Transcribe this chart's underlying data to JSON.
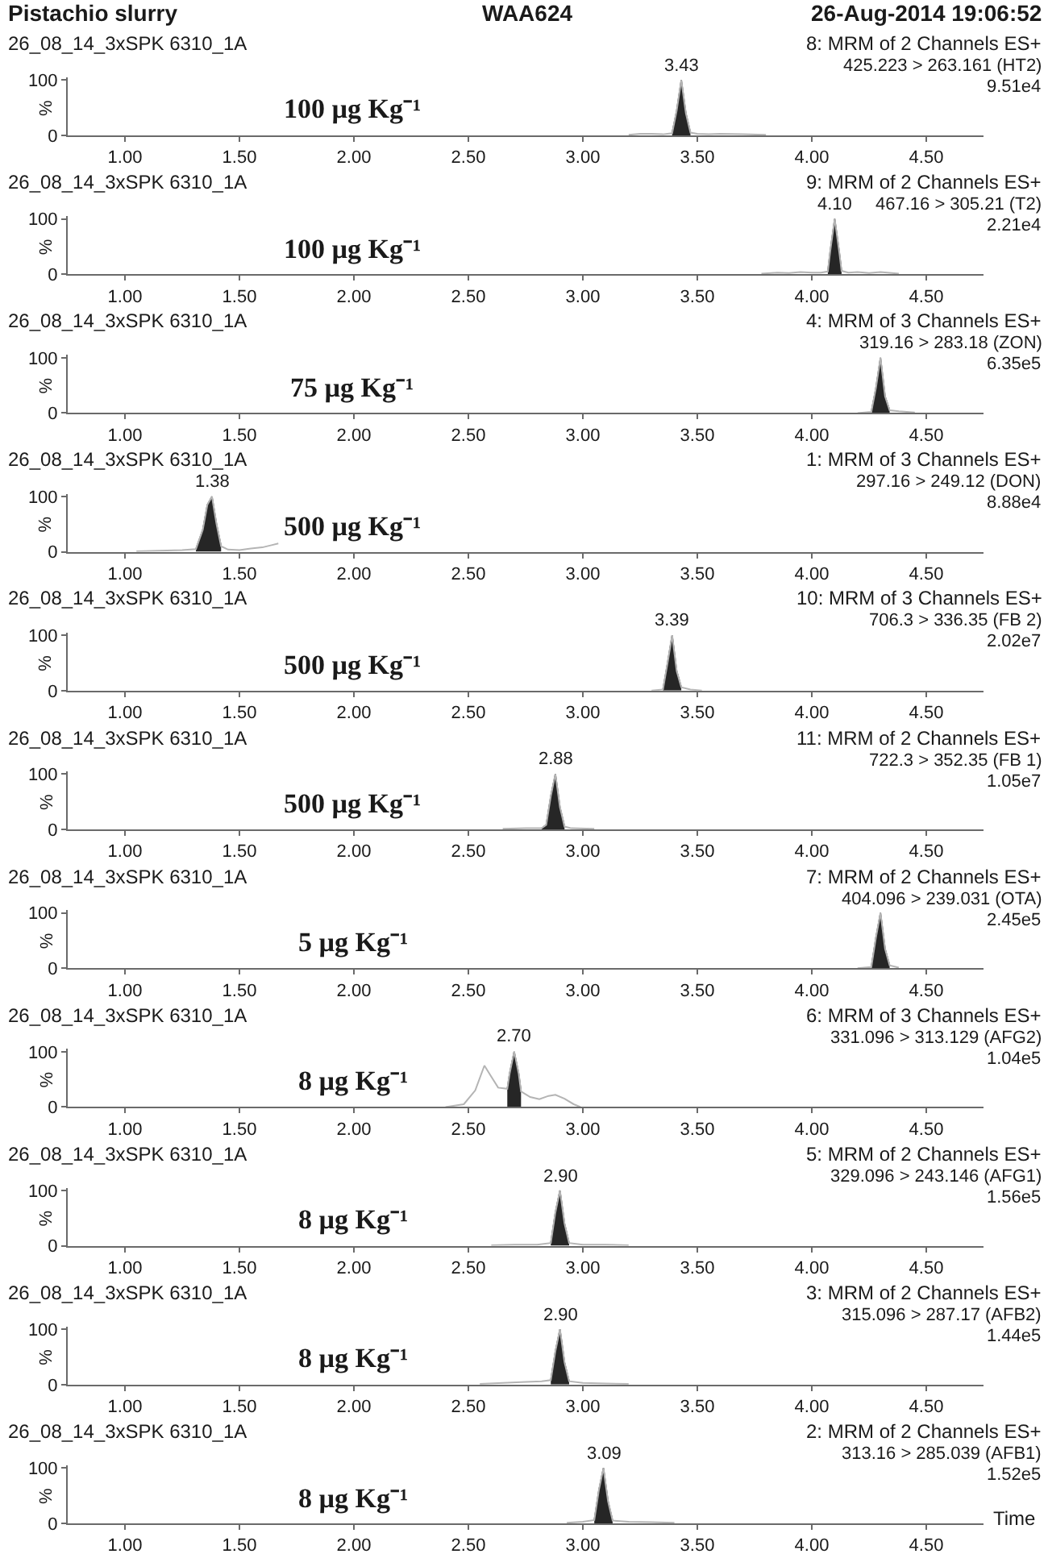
{
  "chart_data": [
    {
      "type": "other",
      "title": "Pistachio slurry",
      "subtitle": "WAA624",
      "annotations": [
        "26-Aug-2014 19:06:52"
      ]
    },
    {
      "type": "line",
      "title": "26_08_14_3xSPK 6310_1A",
      "subtitle": "8: MRM of 2 Channels ES+",
      "ylabel": "%",
      "annotations": [
        "425.223 > 263.161 (HT2)",
        "9.51e4",
        "100 µg Kg⁻¹",
        {
          "text": "3.43",
          "x": 3.43,
          "y": 100
        }
      ],
      "xlim": [
        0.75,
        4.75
      ],
      "xticks": [
        {
          "value": 1,
          "label": "1.00"
        },
        {
          "value": 1.5,
          "label": "1.50"
        },
        {
          "value": 2,
          "label": "2.00"
        },
        {
          "value": 2.5,
          "label": "2.50"
        },
        {
          "value": 3,
          "label": "3.00"
        },
        {
          "value": 3.5,
          "label": "3.50"
        },
        {
          "value": 4,
          "label": "4.00"
        },
        {
          "value": 4.5,
          "label": "4.50"
        }
      ],
      "ylim": [
        0,
        105
      ],
      "yticks": [
        0,
        100
      ],
      "series": [
        {
          "type": "area",
          "color": "#262626",
          "x": [
            3.39,
            3.41,
            3.43,
            3.45,
            3.47
          ],
          "values": [
            4,
            45,
            100,
            40,
            5
          ]
        },
        {
          "type": "line",
          "color": "#b4b4b4",
          "x": [
            3.2,
            3.25,
            3.3,
            3.35,
            3.39,
            3.41,
            3.43,
            3.45,
            3.47,
            3.5,
            3.55,
            3.6,
            3.7,
            3.8
          ],
          "values": [
            1,
            3,
            3,
            2,
            4,
            45,
            100,
            40,
            5,
            3,
            2,
            3,
            2,
            1
          ]
        }
      ]
    },
    {
      "type": "line",
      "title": "26_08_14_3xSPK 6310_1A",
      "subtitle": "9: MRM of 2 Channels ES+",
      "ylabel": "%",
      "annotations": [
        "467.16 > 305.21 (T2)",
        "2.21e4",
        "100 µg Kg⁻¹",
        {
          "text": "4.10",
          "x": 4.1,
          "y": 100
        }
      ],
      "xlim": [
        0.75,
        4.75
      ],
      "xticks": [
        {
          "value": 1,
          "label": "1.00"
        },
        {
          "value": 1.5,
          "label": "1.50"
        },
        {
          "value": 2,
          "label": "2.00"
        },
        {
          "value": 2.5,
          "label": "2.50"
        },
        {
          "value": 3,
          "label": "3.00"
        },
        {
          "value": 3.5,
          "label": "3.50"
        },
        {
          "value": 4,
          "label": "4.00"
        },
        {
          "value": 4.5,
          "label": "4.50"
        }
      ],
      "ylim": [
        0,
        105
      ],
      "yticks": [
        0,
        100
      ],
      "series": [
        {
          "type": "area",
          "color": "#262626",
          "x": [
            4.07,
            4.08,
            4.1,
            4.12,
            4.13
          ],
          "values": [
            5,
            40,
            100,
            40,
            6
          ]
        },
        {
          "type": "line",
          "color": "#b4b4b4",
          "x": [
            3.78,
            3.85,
            3.9,
            3.95,
            4.0,
            4.04,
            4.07,
            4.08,
            4.1,
            4.12,
            4.13,
            4.16,
            4.2,
            4.25,
            4.3,
            4.38
          ],
          "values": [
            1,
            3,
            2,
            4,
            3,
            3,
            5,
            40,
            100,
            40,
            6,
            3,
            4,
            2,
            4,
            1
          ]
        }
      ]
    },
    {
      "type": "line",
      "title": "26_08_14_3xSPK 6310_1A",
      "subtitle": "4: MRM of 3 Channels ES+",
      "ylabel": "%",
      "annotations": [
        "319.16 > 283.18 (ZON)",
        "6.35e5",
        "75 µg Kg⁻¹"
      ],
      "xlim": [
        0.75,
        4.75
      ],
      "xticks": [
        {
          "value": 1,
          "label": "1.00"
        },
        {
          "value": 1.5,
          "label": "1.50"
        },
        {
          "value": 2,
          "label": "2.00"
        },
        {
          "value": 2.5,
          "label": "2.50"
        },
        {
          "value": 3,
          "label": "3.00"
        },
        {
          "value": 3.5,
          "label": "3.50"
        },
        {
          "value": 4,
          "label": "4.00"
        },
        {
          "value": 4.5,
          "label": "4.50"
        }
      ],
      "ylim": [
        0,
        105
      ],
      "yticks": [
        0,
        100
      ],
      "series": [
        {
          "type": "area",
          "color": "#262626",
          "x": [
            4.26,
            4.28,
            4.3,
            4.32,
            4.34
          ],
          "values": [
            2,
            45,
            100,
            30,
            5
          ]
        },
        {
          "type": "line",
          "color": "#b4b4b4",
          "x": [
            4.2,
            4.26,
            4.28,
            4.3,
            4.32,
            4.34,
            4.38,
            4.45
          ],
          "values": [
            0,
            2,
            45,
            100,
            30,
            5,
            3,
            1
          ]
        }
      ]
    },
    {
      "type": "line",
      "title": "26_08_14_3xSPK 6310_1A",
      "subtitle": "1: MRM of 3 Channels ES+",
      "ylabel": "%",
      "annotations": [
        "297.16 > 249.12 (DON)",
        "8.88e4",
        "500 µg Kg⁻¹",
        {
          "text": "1.38",
          "x": 1.38,
          "y": 100
        }
      ],
      "xlim": [
        0.75,
        4.75
      ],
      "xticks": [
        {
          "value": 1,
          "label": "1.00"
        },
        {
          "value": 1.5,
          "label": "1.50"
        },
        {
          "value": 2,
          "label": "2.00"
        },
        {
          "value": 2.5,
          "label": "2.50"
        },
        {
          "value": 3,
          "label": "3.00"
        },
        {
          "value": 3.5,
          "label": "3.50"
        },
        {
          "value": 4,
          "label": "4.00"
        },
        {
          "value": 4.5,
          "label": "4.50"
        }
      ],
      "ylim": [
        0,
        105
      ],
      "yticks": [
        0,
        100
      ],
      "series": [
        {
          "type": "area",
          "color": "#262626",
          "x": [
            1.31,
            1.34,
            1.36,
            1.38,
            1.4,
            1.42
          ],
          "values": [
            5,
            40,
            85,
            100,
            50,
            10
          ]
        },
        {
          "type": "line",
          "color": "#b4b4b4",
          "x": [
            1.05,
            1.15,
            1.25,
            1.31,
            1.34,
            1.36,
            1.38,
            1.4,
            1.42,
            1.45,
            1.5,
            1.55,
            1.6,
            1.64,
            1.67
          ],
          "values": [
            1,
            2,
            3,
            5,
            40,
            85,
            100,
            50,
            10,
            4,
            3,
            6,
            8,
            12,
            15
          ]
        }
      ]
    },
    {
      "type": "line",
      "title": "26_08_14_3xSPK 6310_1A",
      "subtitle": "10: MRM of 3 Channels ES+",
      "ylabel": "%",
      "annotations": [
        "706.3 > 336.35 (FB 2)",
        "2.02e7",
        "500 µg Kg⁻¹",
        {
          "text": "3.39",
          "x": 3.39,
          "y": 100
        }
      ],
      "xlim": [
        0.75,
        4.75
      ],
      "xticks": [
        {
          "value": 1,
          "label": "1.00"
        },
        {
          "value": 1.5,
          "label": "1.50"
        },
        {
          "value": 2,
          "label": "2.00"
        },
        {
          "value": 2.5,
          "label": "2.50"
        },
        {
          "value": 3,
          "label": "3.00"
        },
        {
          "value": 3.5,
          "label": "3.50"
        },
        {
          "value": 4,
          "label": "4.00"
        },
        {
          "value": 4.5,
          "label": "4.50"
        }
      ],
      "ylim": [
        0,
        105
      ],
      "yticks": [
        0,
        100
      ],
      "series": [
        {
          "type": "area",
          "color": "#262626",
          "x": [
            3.35,
            3.37,
            3.39,
            3.41,
            3.43
          ],
          "values": [
            2,
            50,
            100,
            35,
            6
          ]
        },
        {
          "type": "line",
          "color": "#b4b4b4",
          "x": [
            3.3,
            3.35,
            3.37,
            3.39,
            3.41,
            3.43,
            3.47,
            3.52
          ],
          "values": [
            0,
            2,
            50,
            100,
            35,
            6,
            2,
            0
          ]
        }
      ]
    },
    {
      "type": "line",
      "title": "26_08_14_3xSPK 6310_1A",
      "subtitle": "11: MRM of 2 Channels ES+",
      "ylabel": "%",
      "annotations": [
        "722.3 > 352.35 (FB 1)",
        "1.05e7",
        "500 µg Kg⁻¹",
        {
          "text": "2.88",
          "x": 2.88,
          "y": 100
        }
      ],
      "xlim": [
        0.75,
        4.75
      ],
      "xticks": [
        {
          "value": 1,
          "label": "1.00"
        },
        {
          "value": 1.5,
          "label": "1.50"
        },
        {
          "value": 2,
          "label": "2.00"
        },
        {
          "value": 2.5,
          "label": "2.50"
        },
        {
          "value": 3,
          "label": "3.00"
        },
        {
          "value": 3.5,
          "label": "3.50"
        },
        {
          "value": 4,
          "label": "4.00"
        },
        {
          "value": 4.5,
          "label": "4.50"
        }
      ],
      "ylim": [
        0,
        105
      ],
      "yticks": [
        0,
        100
      ],
      "series": [
        {
          "type": "area",
          "color": "#262626",
          "x": [
            2.82,
            2.84,
            2.86,
            2.88,
            2.9,
            2.92
          ],
          "values": [
            2,
            8,
            60,
            100,
            40,
            5
          ]
        },
        {
          "type": "line",
          "color": "#b4b4b4",
          "x": [
            2.65,
            2.75,
            2.82,
            2.84,
            2.86,
            2.88,
            2.9,
            2.92,
            2.95,
            3.05
          ],
          "values": [
            1,
            2,
            2,
            8,
            60,
            100,
            40,
            5,
            2,
            1
          ]
        }
      ]
    },
    {
      "type": "line",
      "title": "26_08_14_3xSPK 6310_1A",
      "subtitle": "7: MRM of 2 Channels ES+",
      "ylabel": "%",
      "annotations": [
        "404.096 > 239.031 (OTA)",
        "2.45e5",
        "5 µg Kg⁻¹"
      ],
      "xlim": [
        0.75,
        4.75
      ],
      "xticks": [
        {
          "value": 1,
          "label": "1.00"
        },
        {
          "value": 1.5,
          "label": "1.50"
        },
        {
          "value": 2,
          "label": "2.00"
        },
        {
          "value": 2.5,
          "label": "2.50"
        },
        {
          "value": 3,
          "label": "3.00"
        },
        {
          "value": 3.5,
          "label": "3.50"
        },
        {
          "value": 4,
          "label": "4.00"
        },
        {
          "value": 4.5,
          "label": "4.50"
        }
      ],
      "ylim": [
        0,
        105
      ],
      "yticks": [
        0,
        100
      ],
      "series": [
        {
          "type": "area",
          "color": "#262626",
          "x": [
            4.26,
            4.28,
            4.3,
            4.32,
            4.34
          ],
          "values": [
            2,
            55,
            100,
            35,
            5
          ]
        },
        {
          "type": "line",
          "color": "#b4b4b4",
          "x": [
            4.2,
            4.26,
            4.28,
            4.3,
            4.32,
            4.34,
            4.38
          ],
          "values": [
            0,
            2,
            55,
            100,
            35,
            5,
            1
          ]
        }
      ]
    },
    {
      "type": "line",
      "title": "26_08_14_3xSPK 6310_1A",
      "subtitle": "6: MRM of 3 Channels ES+",
      "ylabel": "%",
      "annotations": [
        "331.096 > 313.129 (AFG2)",
        "1.04e5",
        "8 µg Kg⁻¹",
        {
          "text": "2.70",
          "x": 2.7,
          "y": 100
        }
      ],
      "xlim": [
        0.75,
        4.75
      ],
      "xticks": [
        {
          "value": 1,
          "label": "1.00"
        },
        {
          "value": 1.5,
          "label": "1.50"
        },
        {
          "value": 2,
          "label": "2.00"
        },
        {
          "value": 2.5,
          "label": "2.50"
        },
        {
          "value": 3,
          "label": "3.00"
        },
        {
          "value": 3.5,
          "label": "3.50"
        },
        {
          "value": 4,
          "label": "4.00"
        },
        {
          "value": 4.5,
          "label": "4.50"
        }
      ],
      "ylim": [
        0,
        105
      ],
      "yticks": [
        0,
        100
      ],
      "series": [
        {
          "type": "area",
          "color": "#262626",
          "x": [
            2.67,
            2.68,
            2.7,
            2.72,
            2.73
          ],
          "values": [
            33,
            60,
            100,
            60,
            28
          ]
        },
        {
          "type": "line",
          "color": "#b4b4b4",
          "x": [
            2.4,
            2.48,
            2.53,
            2.57,
            2.6,
            2.63,
            2.67,
            2.68,
            2.7,
            2.72,
            2.73,
            2.77,
            2.81,
            2.85,
            2.88,
            2.92,
            2.96,
            2.99
          ],
          "values": [
            0,
            5,
            30,
            75,
            55,
            35,
            33,
            60,
            100,
            60,
            28,
            18,
            14,
            20,
            22,
            15,
            5,
            0
          ]
        }
      ]
    },
    {
      "type": "line",
      "title": "26_08_14_3xSPK 6310_1A",
      "subtitle": "5: MRM of 2 Channels ES+",
      "ylabel": "%",
      "annotations": [
        "329.096 > 243.146 (AFG1)",
        "1.56e5",
        "8 µg Kg⁻¹",
        {
          "text": "2.90",
          "x": 2.9,
          "y": 100
        }
      ],
      "xlim": [
        0.75,
        4.75
      ],
      "xticks": [
        {
          "value": 1,
          "label": "1.00"
        },
        {
          "value": 1.5,
          "label": "1.50"
        },
        {
          "value": 2,
          "label": "2.00"
        },
        {
          "value": 2.5,
          "label": "2.50"
        },
        {
          "value": 3,
          "label": "3.00"
        },
        {
          "value": 3.5,
          "label": "3.50"
        },
        {
          "value": 4,
          "label": "4.00"
        },
        {
          "value": 4.5,
          "label": "4.50"
        }
      ],
      "ylim": [
        0,
        105
      ],
      "yticks": [
        0,
        100
      ],
      "series": [
        {
          "type": "area",
          "color": "#262626",
          "x": [
            2.86,
            2.88,
            2.9,
            2.92,
            2.94
          ],
          "values": [
            5,
            60,
            100,
            40,
            5
          ]
        },
        {
          "type": "line",
          "color": "#b4b4b4",
          "x": [
            2.6,
            2.7,
            2.8,
            2.86,
            2.88,
            2.9,
            2.92,
            2.94,
            3.0,
            3.1,
            3.2
          ],
          "values": [
            1,
            2,
            2,
            5,
            60,
            100,
            40,
            5,
            2,
            2,
            1
          ]
        }
      ]
    },
    {
      "type": "line",
      "title": "26_08_14_3xSPK 6310_1A",
      "subtitle": "3: MRM of 2 Channels ES+",
      "ylabel": "%",
      "annotations": [
        "315.096 > 287.17 (AFB2)",
        "1.44e5",
        "8 µg Kg⁻¹",
        {
          "text": "2.90",
          "x": 2.9,
          "y": 100
        }
      ],
      "xlim": [
        0.75,
        4.75
      ],
      "xticks": [
        {
          "value": 1,
          "label": "1.00"
        },
        {
          "value": 1.5,
          "label": "1.50"
        },
        {
          "value": 2,
          "label": "2.00"
        },
        {
          "value": 2.5,
          "label": "2.50"
        },
        {
          "value": 3,
          "label": "3.00"
        },
        {
          "value": 3.5,
          "label": "3.50"
        },
        {
          "value": 4,
          "label": "4.00"
        },
        {
          "value": 4.5,
          "label": "4.50"
        }
      ],
      "ylim": [
        0,
        105
      ],
      "yticks": [
        0,
        100
      ],
      "series": [
        {
          "type": "area",
          "color": "#262626",
          "x": [
            2.86,
            2.88,
            2.9,
            2.92,
            2.94
          ],
          "values": [
            8,
            60,
            100,
            40,
            6
          ]
        },
        {
          "type": "line",
          "color": "#b4b4b4",
          "x": [
            2.55,
            2.65,
            2.75,
            2.82,
            2.86,
            2.88,
            2.9,
            2.92,
            2.94,
            3.0,
            3.1,
            3.2
          ],
          "values": [
            1,
            3,
            5,
            6,
            8,
            60,
            100,
            40,
            6,
            3,
            2,
            1
          ]
        }
      ]
    },
    {
      "type": "line",
      "title": "26_08_14_3xSPK 6310_1A",
      "subtitle": "2: MRM of 2 Channels ES+",
      "xlabel": "Time",
      "ylabel": "%",
      "annotations": [
        "313.16 > 285.039 (AFB1)",
        "1.52e5",
        "8 µg Kg⁻¹",
        {
          "text": "3.09",
          "x": 3.09,
          "y": 100
        }
      ],
      "xlim": [
        0.75,
        4.75
      ],
      "xticks": [
        {
          "value": 1,
          "label": "1.00"
        },
        {
          "value": 1.5,
          "label": "1.50"
        },
        {
          "value": 2,
          "label": "2.00"
        },
        {
          "value": 2.5,
          "label": "2.50"
        },
        {
          "value": 3,
          "label": "3.00"
        },
        {
          "value": 3.5,
          "label": "3.50"
        },
        {
          "value": 4,
          "label": "4.00"
        },
        {
          "value": 4.5,
          "label": "4.50"
        }
      ],
      "ylim": [
        0,
        105
      ],
      "yticks": [
        0,
        100
      ],
      "series": [
        {
          "type": "area",
          "color": "#262626",
          "x": [
            3.05,
            3.07,
            3.09,
            3.11,
            3.13
          ],
          "values": [
            6,
            60,
            100,
            40,
            5
          ]
        },
        {
          "type": "line",
          "color": "#b4b4b4",
          "x": [
            2.93,
            3.0,
            3.05,
            3.07,
            3.09,
            3.11,
            3.13,
            3.2,
            3.3,
            3.4
          ],
          "values": [
            1,
            3,
            6,
            60,
            100,
            40,
            5,
            3,
            2,
            1
          ]
        }
      ]
    }
  ]
}
